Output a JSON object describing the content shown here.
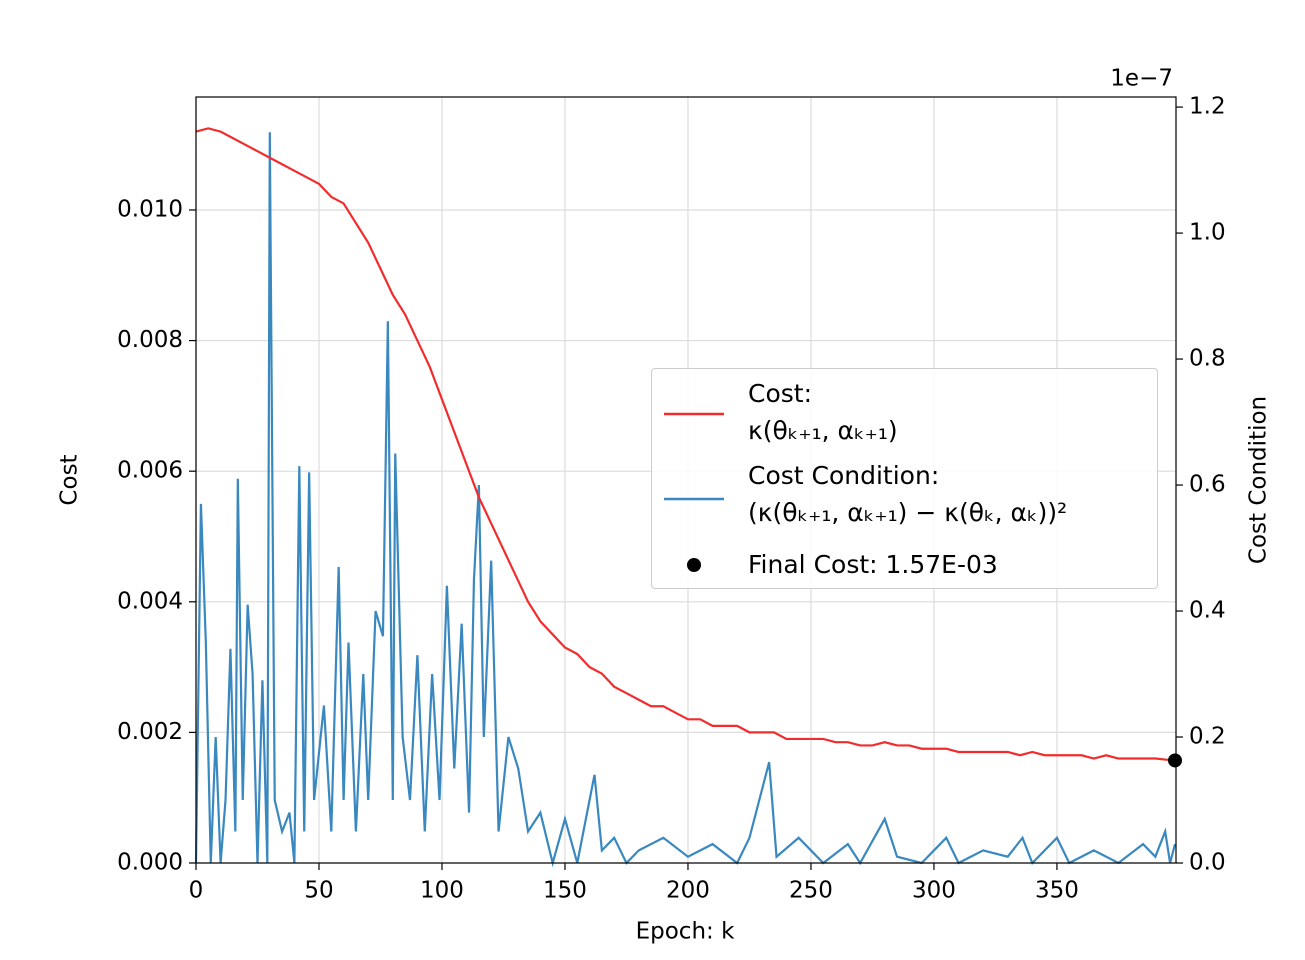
{
  "chart_data": {
    "type": "line",
    "xlabel": "Epoch: k",
    "ylabel": "Cost",
    "y2label": "Cost Condition",
    "y2_offset_label": "1e−7",
    "xlim": [
      0,
      398.4
    ],
    "ylim": [
      0,
      0.01173
    ],
    "y2lim": [
      0,
      1.216
    ],
    "xticks": [
      0,
      50,
      100,
      150,
      200,
      250,
      300,
      350
    ],
    "yticks": [
      {
        "value": 0,
        "label": "0.000"
      },
      {
        "value": 0.002,
        "label": "0.002"
      },
      {
        "value": 0.004,
        "label": "0.004"
      },
      {
        "value": 0.006,
        "label": "0.006"
      },
      {
        "value": 0.008,
        "label": "0.008"
      },
      {
        "value": 0.01,
        "label": "0.010"
      }
    ],
    "y2ticks": [
      {
        "value": 0,
        "label": "0.0"
      },
      0.2,
      0.4,
      0.6,
      0.8,
      {
        "value": 1,
        "label": "1.0"
      },
      1.2
    ],
    "grid": true,
    "legend": "center right",
    "series": [
      {
        "name": "Cost:\nκ(θₖ₊₁, αₖ₊₁)",
        "color": "#f22c2c",
        "x": [
          0,
          5,
          10,
          15,
          20,
          25,
          30,
          35,
          40,
          45,
          50,
          55,
          60,
          65,
          70,
          75,
          80,
          85,
          90,
          95,
          100,
          105,
          110,
          115,
          120,
          125,
          130,
          135,
          140,
          145,
          150,
          155,
          160,
          165,
          170,
          175,
          180,
          185,
          190,
          195,
          200,
          205,
          210,
          215,
          220,
          225,
          230,
          235,
          240,
          245,
          250,
          255,
          260,
          265,
          270,
          275,
          280,
          285,
          290,
          295,
          300,
          305,
          310,
          315,
          320,
          325,
          330,
          335,
          340,
          345,
          350,
          355,
          360,
          365,
          370,
          375,
          380,
          385,
          390,
          395,
          398
        ],
        "values": [
          0.0112,
          0.01125,
          0.0112,
          0.0111,
          0.011,
          0.0109,
          0.0108,
          0.0107,
          0.0106,
          0.0105,
          0.0104,
          0.0102,
          0.0101,
          0.0098,
          0.0095,
          0.0091,
          0.0087,
          0.0084,
          0.008,
          0.0076,
          0.0071,
          0.0066,
          0.0061,
          0.0056,
          0.0052,
          0.0048,
          0.0044,
          0.004,
          0.0037,
          0.0035,
          0.0033,
          0.0032,
          0.003,
          0.0029,
          0.0027,
          0.0026,
          0.0025,
          0.0024,
          0.0024,
          0.0023,
          0.0022,
          0.0022,
          0.0021,
          0.0021,
          0.0021,
          0.002,
          0.002,
          0.002,
          0.0019,
          0.0019,
          0.0019,
          0.0019,
          0.00185,
          0.00185,
          0.0018,
          0.0018,
          0.00185,
          0.0018,
          0.0018,
          0.00175,
          0.00175,
          0.00175,
          0.0017,
          0.0017,
          0.0017,
          0.0017,
          0.0017,
          0.00165,
          0.0017,
          0.00165,
          0.00165,
          0.00165,
          0.00165,
          0.0016,
          0.00165,
          0.0016,
          0.0016,
          0.0016,
          0.0016,
          0.00158,
          0.00157
        ]
      },
      {
        "name": "Cost Condition:\n(κ(θₖ₊₁, αₖ₊₁) − κ(θₖ, αₖ))²",
        "color": "#3a88c0",
        "axis": "y2",
        "x": [
          0,
          2,
          4,
          6,
          8,
          10,
          12,
          14,
          16,
          17,
          19,
          21,
          23,
          25,
          27,
          29,
          30,
          32,
          35,
          38,
          40,
          42,
          44,
          46,
          48,
          52,
          55,
          58,
          60,
          62,
          65,
          68,
          70,
          73,
          76,
          78,
          80,
          81,
          84,
          87,
          90,
          93,
          96,
          99,
          102,
          105,
          108,
          111,
          113,
          115,
          117,
          120,
          123,
          127,
          131,
          135,
          140,
          145,
          150,
          155,
          160,
          162,
          165,
          170,
          175,
          180,
          190,
          200,
          210,
          220,
          225,
          233,
          236,
          245,
          255,
          265,
          270,
          280,
          285,
          295,
          305,
          310,
          320,
          330,
          336,
          340,
          350,
          355,
          365,
          375,
          385,
          390,
          394,
          396,
          398
        ],
        "values": [
          0,
          0.57,
          0.35,
          0,
          0.2,
          0,
          0.1,
          0.34,
          0.05,
          0.61,
          0.1,
          0.41,
          0.3,
          0,
          0.29,
          0,
          1.16,
          0.1,
          0.05,
          0.08,
          0,
          0.63,
          0.05,
          0.62,
          0.1,
          0.25,
          0.05,
          0.47,
          0.1,
          0.35,
          0.05,
          0.3,
          0.1,
          0.4,
          0.36,
          0.86,
          0.1,
          0.65,
          0.2,
          0.1,
          0.33,
          0.05,
          0.3,
          0.1,
          0.44,
          0.15,
          0.38,
          0.08,
          0.45,
          0.6,
          0.2,
          0.48,
          0.05,
          0.2,
          0.15,
          0.05,
          0.08,
          0,
          0.07,
          0,
          0.1,
          0.14,
          0.02,
          0.04,
          0,
          0.02,
          0.04,
          0.01,
          0.03,
          0,
          0.04,
          0.16,
          0.01,
          0.04,
          0,
          0.03,
          0,
          0.07,
          0.01,
          0,
          0.04,
          0,
          0.02,
          0.01,
          0.04,
          0,
          0.04,
          0,
          0.02,
          0,
          0.03,
          0.01,
          0.05,
          0,
          0.03
        ]
      }
    ],
    "final_point": {
      "label": "Final Cost: 1.57E-03",
      "x": 398,
      "y": 0.00157,
      "color": "#000000"
    }
  }
}
